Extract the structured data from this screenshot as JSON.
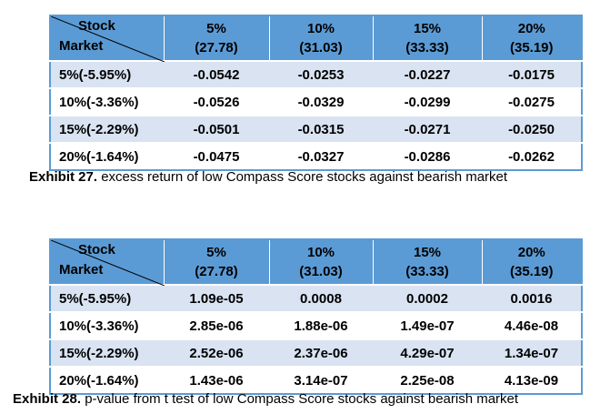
{
  "table1": {
    "header_stock": "Stock",
    "header_market": "Market",
    "columns": [
      {
        "pct": "5%",
        "val": "(27.78)"
      },
      {
        "pct": "10%",
        "val": "(31.03)"
      },
      {
        "pct": "15%",
        "val": "(33.33)"
      },
      {
        "pct": "20%",
        "val": "(35.19)"
      }
    ],
    "rows": [
      {
        "label": "5%(-5.95%)",
        "cells": [
          "-0.0542",
          "-0.0253",
          "-0.0227",
          "-0.0175"
        ]
      },
      {
        "label": "10%(-3.36%)",
        "cells": [
          "-0.0526",
          "-0.0329",
          "-0.0299",
          "-0.0275"
        ]
      },
      {
        "label": "15%(-2.29%)",
        "cells": [
          "-0.0501",
          "-0.0315",
          "-0.0271",
          "-0.0250"
        ]
      },
      {
        "label": "20%(-1.64%)",
        "cells": [
          "-0.0475",
          "-0.0327",
          "-0.0286",
          "-0.0262"
        ]
      }
    ],
    "caption_bold": "Exhibit 27.",
    "caption_text": " excess return of low Compass Score stocks against bearish market"
  },
  "table2": {
    "header_stock": "Stock",
    "header_market": "Market",
    "columns": [
      {
        "pct": "5%",
        "val": "(27.78)"
      },
      {
        "pct": "10%",
        "val": "(31.03)"
      },
      {
        "pct": "15%",
        "val": "(33.33)"
      },
      {
        "pct": "20%",
        "val": "(35.19)"
      }
    ],
    "rows": [
      {
        "label": "5%(-5.95%)",
        "cells": [
          "1.09e-05",
          "0.0008",
          "0.0002",
          "0.0016"
        ]
      },
      {
        "label": "10%(-3.36%)",
        "cells": [
          "2.85e-06",
          "1.88e-06",
          "1.49e-07",
          "4.46e-08"
        ]
      },
      {
        "label": "15%(-2.29%)",
        "cells": [
          "2.52e-06",
          "2.37e-06",
          "4.29e-07",
          "1.34e-07"
        ]
      },
      {
        "label": "20%(-1.64%)",
        "cells": [
          "1.43e-06",
          "3.14e-07",
          "2.25e-08",
          "4.13e-09"
        ]
      }
    ],
    "caption_bold": "Exhibit 28.",
    "caption_text": " p-value from t test of low Compass Score stocks against bearish market"
  },
  "colors": {
    "header_bg": "#5b9bd5",
    "band_bg": "#d9e3f2",
    "border": "#5b9bd5"
  }
}
